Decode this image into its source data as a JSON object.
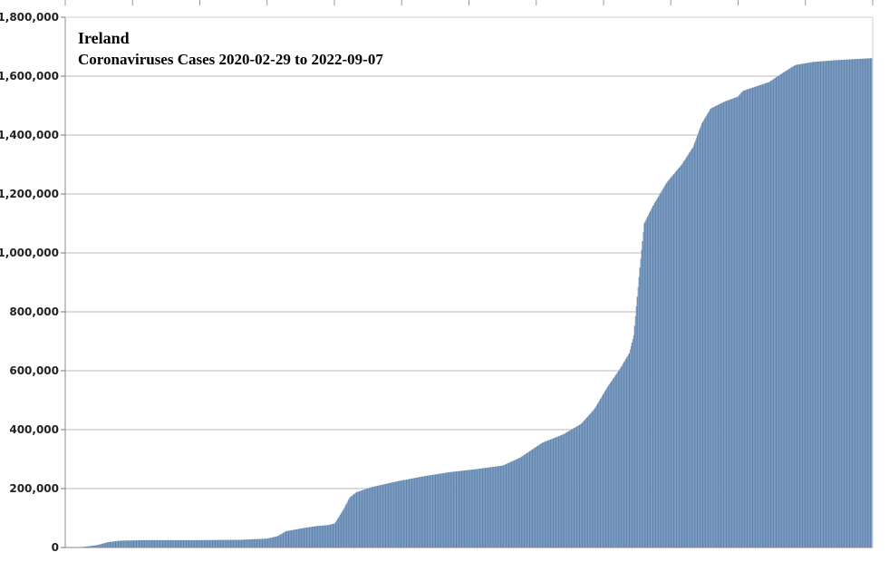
{
  "chart_data": {
    "type": "bar",
    "title": "Ireland",
    "subtitle": "Coronaviruses Cases 2020-02-29 to 2022-09-07",
    "xlabel": "",
    "ylabel": "",
    "x_start": "2020-02-29",
    "x_end": "2022-09-07",
    "ylim": [
      0,
      1800000
    ],
    "yticks": [
      "0",
      "200,000",
      "400,000",
      "600,000",
      "800,000",
      "1,000,000",
      "1,200,000",
      "1,400,000",
      "1,600,000",
      "1,800,000"
    ],
    "grid": true,
    "bar_color": "#7c9dc3",
    "bar_edge_color": "#5e7fa6",
    "series": [
      {
        "values": [
          [
            0,
            0
          ],
          [
            20,
            2000
          ],
          [
            36,
            8000
          ],
          [
            48,
            18000
          ],
          [
            62,
            23000
          ],
          [
            90,
            25000
          ],
          [
            150,
            25000
          ],
          [
            200,
            26000
          ],
          [
            230,
            30000
          ],
          [
            242,
            38000
          ],
          [
            252,
            55000
          ],
          [
            270,
            65000
          ],
          [
            285,
            72000
          ],
          [
            300,
            76000
          ],
          [
            308,
            82000
          ],
          [
            318,
            130000
          ],
          [
            325,
            170000
          ],
          [
            333,
            188000
          ],
          [
            350,
            205000
          ],
          [
            380,
            225000
          ],
          [
            410,
            242000
          ],
          [
            440,
            256000
          ],
          [
            470,
            266000
          ],
          [
            500,
            278000
          ],
          [
            520,
            305000
          ],
          [
            545,
            355000
          ],
          [
            570,
            385000
          ],
          [
            590,
            420000
          ],
          [
            605,
            470000
          ],
          [
            620,
            545000
          ],
          [
            635,
            610000
          ],
          [
            645,
            660000
          ],
          [
            650,
            720000
          ],
          [
            657,
            950000
          ],
          [
            662,
            1100000
          ],
          [
            672,
            1160000
          ],
          [
            688,
            1240000
          ],
          [
            705,
            1300000
          ],
          [
            718,
            1360000
          ],
          [
            728,
            1440000
          ],
          [
            738,
            1490000
          ],
          [
            755,
            1515000
          ],
          [
            769,
            1530000
          ],
          [
            775,
            1550000
          ],
          [
            790,
            1565000
          ],
          [
            805,
            1580000
          ],
          [
            820,
            1610000
          ],
          [
            835,
            1638000
          ],
          [
            855,
            1648000
          ],
          [
            880,
            1654000
          ],
          [
            923,
            1661000
          ]
        ]
      }
    ]
  }
}
